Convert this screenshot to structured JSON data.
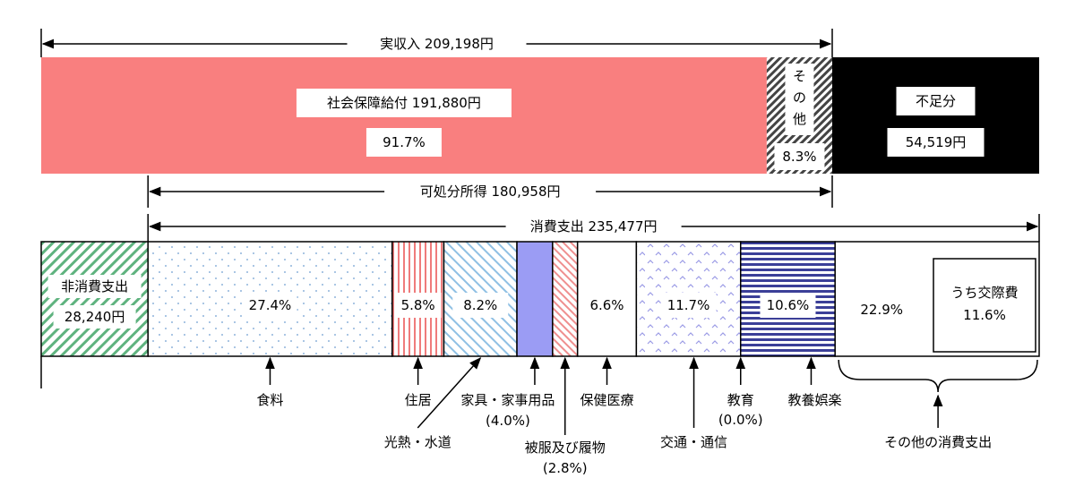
{
  "chart_data": {
    "type": "bar",
    "subtype": "stacked-horizontal-breakdown",
    "colors": {
      "social_security": "#f97f7f",
      "other_income_hatch": "#444444",
      "shortage": "#000000",
      "non_consumption": "#5fb37f",
      "food_dots": "#8fb4dc",
      "housing": "#ef7b7b",
      "utilities": "#8fc0e4",
      "furniture": "#9b9cf4",
      "clothing": "#ef8f8f",
      "transport": "#9a9ae6",
      "recreation": "#3b3f98"
    },
    "income_row": {
      "segments": [
        {
          "key": "social_security",
          "label": "社会保障給付 191,880円",
          "percent_label": "91.7%",
          "value": 191880
        },
        {
          "key": "other",
          "label": "その他",
          "percent_label": "8.3%",
          "value": 17318
        },
        {
          "key": "shortage",
          "label": "不足分",
          "amount_label": "54,519円",
          "value": 54519
        }
      ],
      "brackets": {
        "real_income": {
          "label": "実収入 209,198円",
          "value": 209198
        },
        "disposable_income": {
          "label": "可処分所得 180,958円",
          "value": 180958
        },
        "consumption": {
          "label": "消費支出 235,477円",
          "value": 235477
        }
      }
    },
    "spending_row": {
      "non_consumption": {
        "label": "非消費支出",
        "amount_label": "28,240円",
        "value": 28240
      },
      "categories": [
        {
          "key": "food",
          "name": "食料",
          "percent": 27.4,
          "percent_label": "27.4%"
        },
        {
          "key": "housing",
          "name": "住居",
          "percent": 5.8,
          "percent_label": "5.8%"
        },
        {
          "key": "utilities",
          "name": "光熱・水道",
          "percent": 8.2,
          "percent_label": "8.2%"
        },
        {
          "key": "furniture",
          "name": "家具・家事用品",
          "percent": 4.0,
          "percent_label": "(4.0%)"
        },
        {
          "key": "clothing",
          "name": "被服及び履物",
          "percent": 2.8,
          "percent_label": "(2.8%)"
        },
        {
          "key": "health",
          "name": "保健医療",
          "percent": 6.6,
          "percent_label": "6.6%"
        },
        {
          "key": "transport",
          "name": "交通・通信",
          "percent": 11.7,
          "percent_label": "11.7%"
        },
        {
          "key": "education",
          "name": "教育",
          "percent": 0.0,
          "percent_label": "(0.0%)"
        },
        {
          "key": "recreation",
          "name": "教養娯楽",
          "percent": 10.6,
          "percent_label": "10.6%"
        },
        {
          "key": "other_consumption",
          "name": "その他の消費支出",
          "percent": 22.9,
          "percent_label": "22.9%",
          "sub": {
            "name": "うち交際費",
            "percent": 11.6,
            "percent_label": "11.6%"
          }
        }
      ]
    }
  }
}
